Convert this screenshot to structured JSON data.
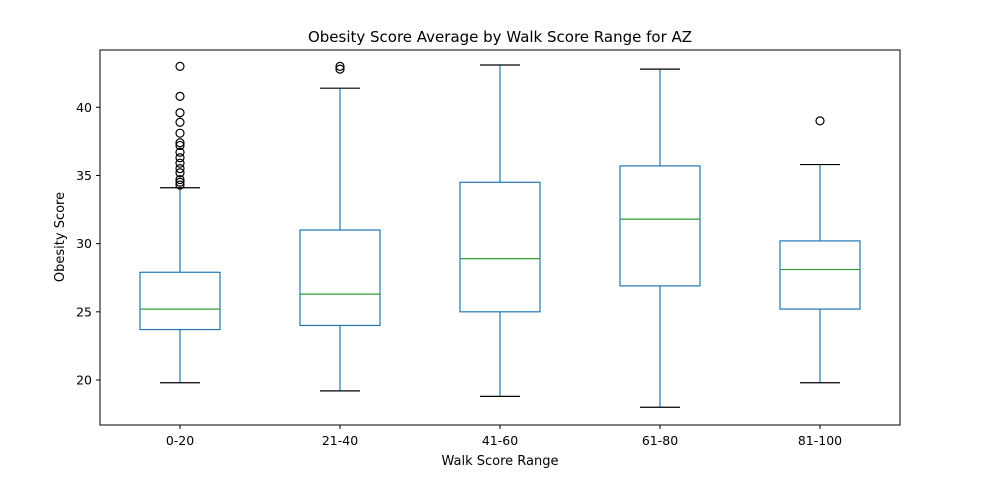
{
  "chart_data": {
    "type": "box",
    "title": "Obesity Score Average by Walk Score Range for AZ",
    "xlabel": "Walk Score Range",
    "ylabel": "Obesity Score",
    "ylim": [
      16.7,
      44.2
    ],
    "yticks": [
      20,
      25,
      30,
      35,
      40
    ],
    "grid": false,
    "categories": [
      "0-20",
      "21-40",
      "41-60",
      "61-80",
      "81-100"
    ],
    "boxes": [
      {
        "category": "0-20",
        "whisker_low": 19.8,
        "q1": 23.7,
        "median": 25.2,
        "q3": 27.9,
        "whisker_high": 34.1,
        "outliers": [
          34.3,
          34.5,
          34.7,
          35.2,
          35.5,
          35.9,
          36.3,
          36.7,
          37.2,
          37.4,
          38.1,
          38.9,
          39.6,
          40.8,
          43.0
        ]
      },
      {
        "category": "21-40",
        "whisker_low": 19.2,
        "q1": 24.0,
        "median": 26.3,
        "q3": 31.0,
        "whisker_high": 41.4,
        "outliers": [
          42.8,
          43.0
        ]
      },
      {
        "category": "41-60",
        "whisker_low": 18.8,
        "q1": 25.0,
        "median": 28.9,
        "q3": 34.5,
        "whisker_high": 43.1,
        "outliers": []
      },
      {
        "category": "61-80",
        "whisker_low": 18.0,
        "q1": 26.9,
        "median": 31.8,
        "q3": 35.7,
        "whisker_high": 42.8,
        "outliers": []
      },
      {
        "category": "81-100",
        "whisker_low": 19.8,
        "q1": 25.2,
        "median": 28.1,
        "q3": 30.2,
        "whisker_high": 35.8,
        "outliers": [
          39.0
        ]
      }
    ],
    "colors": {
      "box": "#1f77b4",
      "median": "#2ca02c",
      "whisker_cap": "#000000",
      "outlier": "#000000"
    }
  }
}
